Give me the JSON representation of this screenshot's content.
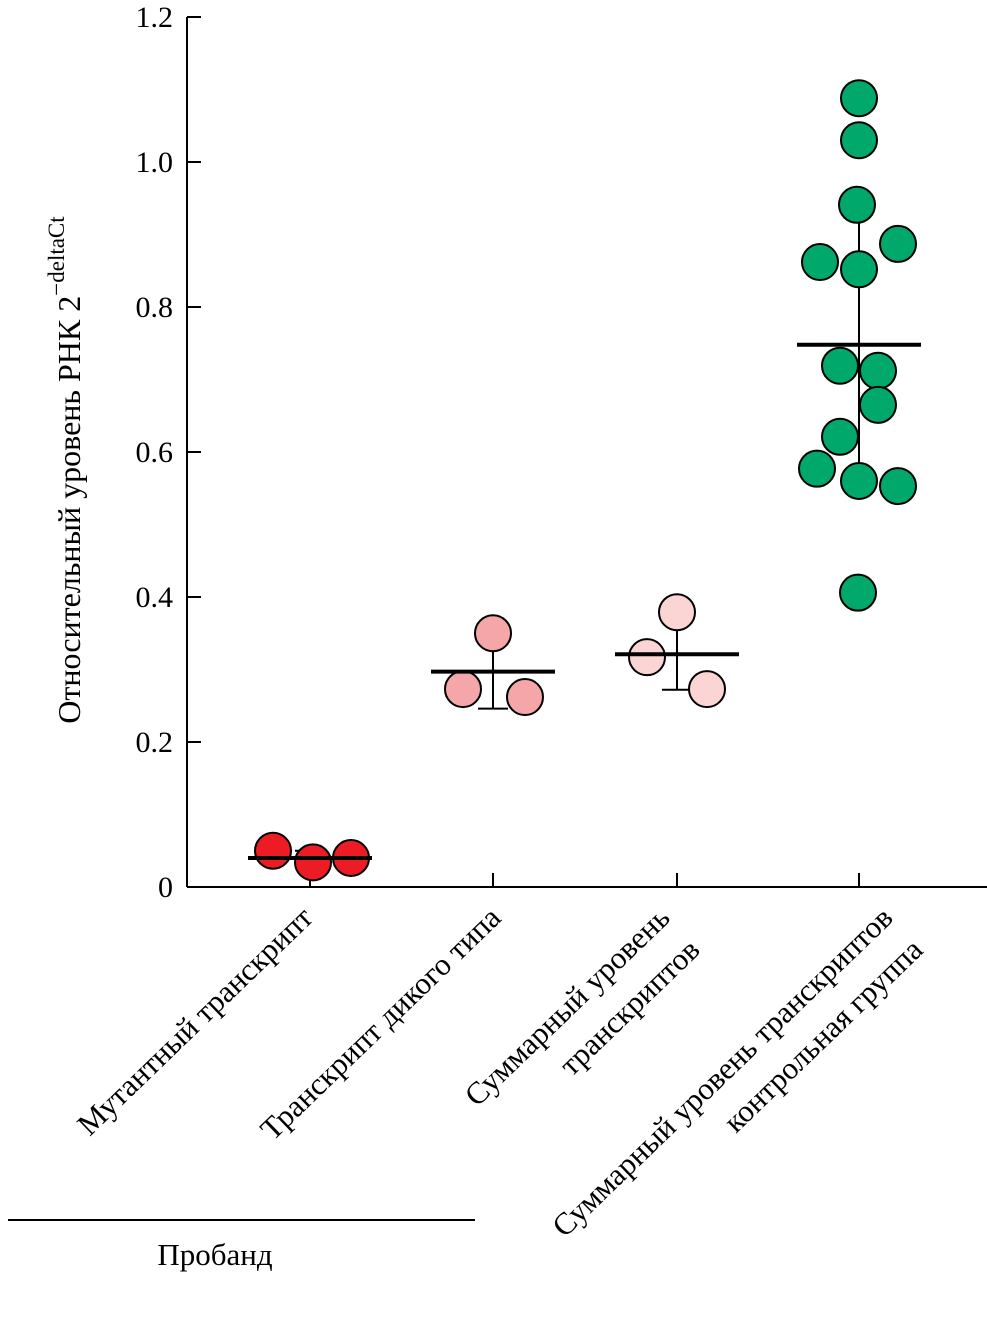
{
  "chart_data": {
    "type": "scatter",
    "subtype": "dot plot with mean and SD error bars",
    "ylabel": "Относительный уровень РНК 2",
    "ylabel_superscript": "−deltaCt",
    "ylim": [
      0,
      1.2
    ],
    "yticks": [
      "0",
      "0.2",
      "0.4",
      "0.6",
      "0.8",
      "1.0",
      "1.2"
    ],
    "ytick_values": [
      0,
      0.2,
      0.4,
      0.6,
      0.8,
      1.0,
      1.2
    ],
    "grid": false,
    "group_label": "Пробанд",
    "categories": [
      {
        "lines": [
          "Мутантный транскрипт"
        ],
        "color": "#ed1c24",
        "values": [
          0.05,
          0.034,
          0.04
        ],
        "mean": 0.04,
        "sd_low": 0.029,
        "sd_high": 0.05
      },
      {
        "lines": [
          "Транскрипт дикого типа"
        ],
        "color": "#f4a6a8",
        "values": [
          0.35,
          0.273,
          0.262
        ],
        "mean": 0.297,
        "sd_low": 0.246,
        "sd_high": 0.342
      },
      {
        "lines": [
          "Суммарный уровень",
          "транскриптов"
        ],
        "color": "#fbd5d3",
        "values": [
          0.379,
          0.317,
          0.273
        ],
        "mean": 0.321,
        "sd_low": 0.272,
        "sd_high": 0.372
      },
      {
        "lines": [
          "Суммарный уровень транскриптов",
          "контрольная группа"
        ],
        "color": "#00a86b",
        "values": [
          1.088,
          1.03,
          0.941,
          0.887,
          0.862,
          0.852,
          0.719,
          0.712,
          0.665,
          0.621,
          0.577,
          0.56,
          0.553,
          0.406
        ],
        "mean": 0.748,
        "sd_low": 0.548,
        "sd_high": 0.948
      }
    ]
  }
}
